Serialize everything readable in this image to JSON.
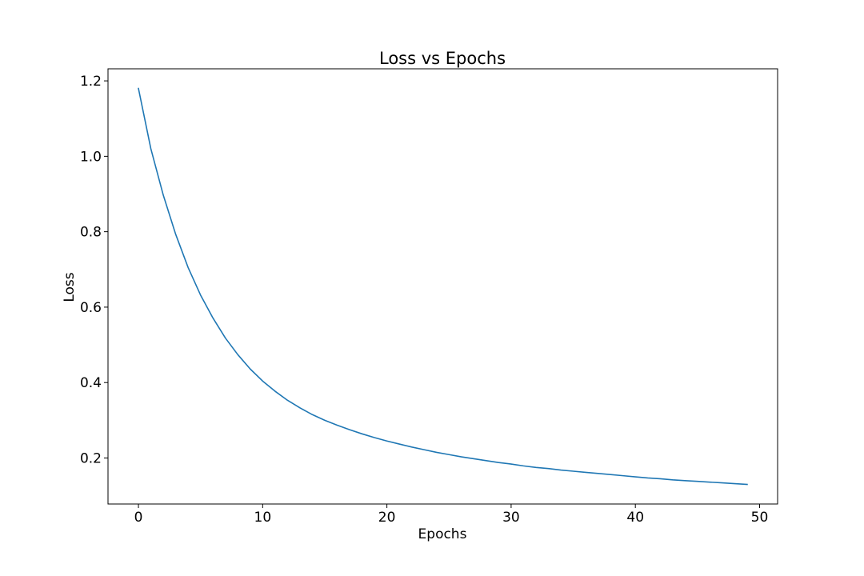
{
  "chart_data": {
    "type": "line",
    "title": "Loss vs Epochs",
    "xlabel": "Epochs",
    "ylabel": "Loss",
    "xlim": [
      -2.45,
      51.45
    ],
    "ylim": [
      0.078,
      1.232
    ],
    "xticks": [
      0,
      10,
      20,
      30,
      40,
      50
    ],
    "xtick_labels": [
      "0",
      "10",
      "20",
      "30",
      "40",
      "50"
    ],
    "yticks": [
      0.2,
      0.4,
      0.6,
      0.8,
      1.0,
      1.2
    ],
    "ytick_labels": [
      "0.2",
      "0.4",
      "0.6",
      "0.8",
      "1.0",
      "1.2"
    ],
    "grid": false,
    "series": [
      {
        "color": "#1f77b4",
        "x": [
          0,
          1,
          2,
          3,
          4,
          5,
          6,
          7,
          8,
          9,
          10,
          11,
          12,
          13,
          14,
          15,
          16,
          17,
          18,
          19,
          20,
          21,
          22,
          23,
          24,
          25,
          26,
          27,
          28,
          29,
          30,
          31,
          32,
          33,
          34,
          35,
          36,
          37,
          38,
          39,
          40,
          41,
          42,
          43,
          44,
          45,
          46,
          47,
          48,
          49
        ],
        "y": [
          1.18,
          1.02,
          0.897,
          0.793,
          0.705,
          0.632,
          0.571,
          0.518,
          0.474,
          0.436,
          0.404,
          0.377,
          0.353,
          0.333,
          0.315,
          0.3,
          0.287,
          0.275,
          0.264,
          0.254,
          0.245,
          0.237,
          0.229,
          0.222,
          0.215,
          0.209,
          0.203,
          0.198,
          0.193,
          0.188,
          0.184,
          0.179,
          0.175,
          0.172,
          0.168,
          0.165,
          0.162,
          0.159,
          0.156,
          0.153,
          0.15,
          0.147,
          0.145,
          0.142,
          0.14,
          0.138,
          0.136,
          0.134,
          0.132,
          0.13
        ]
      }
    ]
  }
}
